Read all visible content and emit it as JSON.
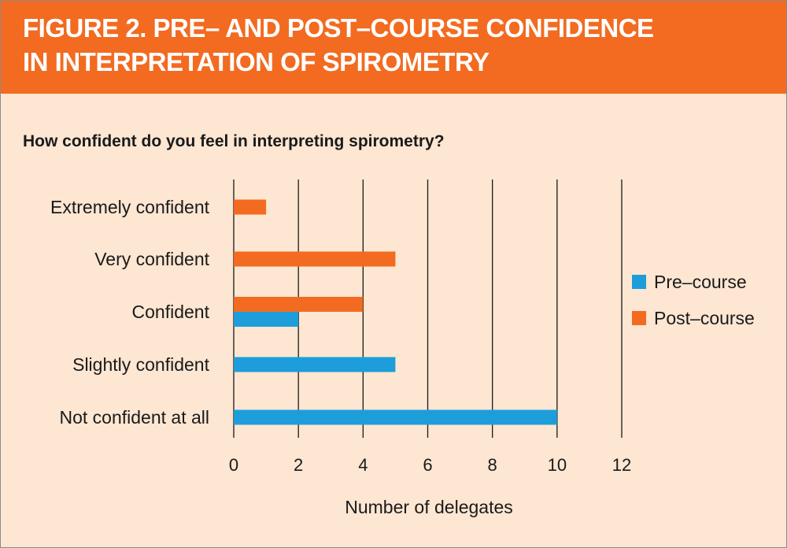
{
  "figure": {
    "title_line1": "FIGURE 2. PRE– AND POST–COURSE CONFIDENCE",
    "title_line2": "IN INTERPRETATION OF SPIROMETRY"
  },
  "chart_data": {
    "type": "bar",
    "orientation": "horizontal",
    "title": "How confident do you feel in interpreting spirometry?",
    "xlabel": "Number of delegates",
    "ylabel": "",
    "categories": [
      "Extremely confident",
      "Very confident",
      "Confident",
      "Slightly confident",
      "Not confident at all"
    ],
    "series": [
      {
        "name": "Pre-course",
        "color": "#1e9ddb",
        "values": [
          0,
          0,
          2,
          5,
          10
        ]
      },
      {
        "name": "Post-course",
        "color": "#f26b21",
        "values": [
          1,
          5,
          4,
          0,
          0
        ]
      }
    ],
    "xlim": [
      0,
      12
    ],
    "xticks": [
      "0",
      "2",
      "4",
      "6",
      "8",
      "10",
      "12"
    ],
    "grid": "vertical",
    "legend_position": "right",
    "legend_labels": [
      "Pre–course",
      "Post–course"
    ]
  },
  "colors": {
    "header_background": "#f26b21",
    "panel_background": "#fde6d2",
    "pre_course": "#1e9ddb",
    "post_course": "#f26b21"
  }
}
